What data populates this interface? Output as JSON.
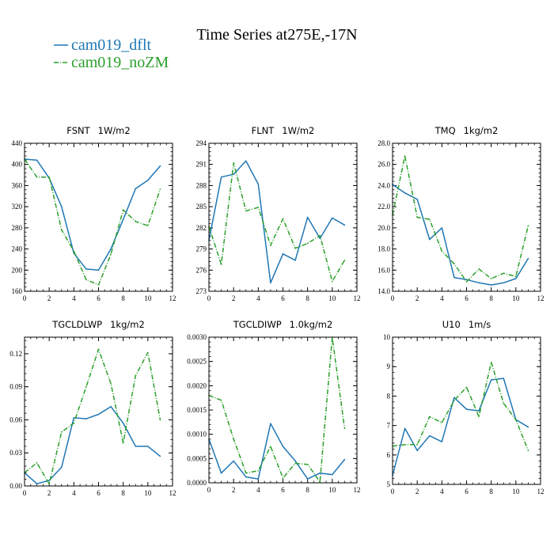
{
  "title": "Time Series at275E,-17N",
  "legend": [
    {
      "label": "cam019_dflt",
      "color": "#1f77b4"
    },
    {
      "label": "cam019_noZM",
      "color": "#2ca02c"
    }
  ],
  "chart_data": [
    {
      "type": "line",
      "title": "FSNT",
      "units": "1W/m2",
      "xlim": [
        0,
        12
      ],
      "xticks": [
        0,
        2,
        4,
        6,
        8,
        10,
        12
      ],
      "ylim": [
        160,
        440
      ],
      "yticks": [
        160,
        200,
        240,
        280,
        320,
        360,
        400,
        440
      ],
      "ytick_labels": [
        "160",
        "200",
        "240",
        "280",
        "320",
        "360",
        "400",
        "440"
      ],
      "x": [
        0,
        1,
        2,
        3,
        4,
        5,
        6,
        7,
        8,
        9,
        10,
        11
      ],
      "series": [
        {
          "name": "cam019_dflt",
          "values": [
            410,
            408,
            374,
            320,
            232,
            202,
            200,
            240,
            296,
            354,
            370,
            397
          ]
        },
        {
          "name": "cam019_noZM",
          "values": [
            410,
            376,
            376,
            276,
            236,
            182,
            172,
            230,
            314,
            292,
            284,
            353
          ]
        }
      ]
    },
    {
      "type": "line",
      "title": "FLNT",
      "units": "1W/m2",
      "xlim": [
        0,
        12
      ],
      "xticks": [
        0,
        2,
        4,
        6,
        8,
        10,
        12
      ],
      "ylim": [
        273,
        294
      ],
      "yticks": [
        273,
        276,
        279,
        282,
        285,
        288,
        291,
        294
      ],
      "ytick_labels": [
        "273",
        "276",
        "279",
        "282",
        "285",
        "288",
        "291",
        "294"
      ],
      "x": [
        0,
        1,
        2,
        3,
        4,
        5,
        6,
        7,
        8,
        9,
        10,
        11
      ],
      "series": [
        {
          "name": "cam019_dflt",
          "values": [
            280.2,
            289.2,
            289.6,
            291.5,
            288.2,
            274.2,
            278.3,
            277.4,
            283.5,
            280.5,
            283.4,
            282.4
          ]
        },
        {
          "name": "cam019_noZM",
          "values": [
            282.2,
            276.8,
            291.2,
            284.4,
            284.9,
            279.5,
            283.3,
            279.1,
            279.8,
            280.9,
            274.4,
            277.4
          ]
        }
      ]
    },
    {
      "type": "line",
      "title": "TMQ",
      "units": "1kg/m2",
      "xlim": [
        0,
        12
      ],
      "xticks": [
        0,
        2,
        4,
        6,
        8,
        10,
        12
      ],
      "ylim": [
        14,
        28
      ],
      "yticks": [
        14,
        16,
        18,
        20,
        22,
        24,
        26,
        28
      ],
      "ytick_labels": [
        "14.0",
        "16.0",
        "18.0",
        "20.0",
        "22.0",
        "24.0",
        "26.0",
        "28.0"
      ],
      "x": [
        0,
        1,
        2,
        3,
        4,
        5,
        6,
        7,
        8,
        9,
        10,
        11
      ],
      "series": [
        {
          "name": "cam019_dflt",
          "values": [
            24.1,
            23.3,
            22.7,
            18.9,
            20.0,
            15.3,
            15.1,
            14.8,
            14.6,
            14.8,
            15.2,
            17.1
          ]
        },
        {
          "name": "cam019_noZM",
          "values": [
            21.2,
            26.8,
            21.0,
            20.8,
            17.8,
            16.6,
            14.9,
            16.1,
            15.2,
            15.7,
            15.4,
            20.2
          ]
        }
      ]
    },
    {
      "type": "line",
      "title": "TGCLDLWP",
      "units": "1kg/m2",
      "xlim": [
        0,
        12
      ],
      "xticks": [
        0,
        2,
        4,
        6,
        8,
        10,
        12
      ],
      "ylim": [
        0,
        0.135
      ],
      "yticks": [
        0,
        0.03,
        0.06,
        0.09,
        0.12
      ],
      "ytick_labels": [
        "0.00",
        "0.03",
        "0.06",
        "0.09",
        "0.12"
      ],
      "x": [
        0,
        1,
        2,
        3,
        4,
        5,
        6,
        7,
        8,
        9,
        10,
        11
      ],
      "series": [
        {
          "name": "cam019_dflt",
          "values": [
            0.012,
            0.002,
            0.005,
            0.017,
            0.062,
            0.061,
            0.065,
            0.072,
            0.057,
            0.036,
            0.036,
            0.027
          ]
        },
        {
          "name": "cam019_noZM",
          "values": [
            0.012,
            0.021,
            0.002,
            0.049,
            0.057,
            0.09,
            0.124,
            0.093,
            0.039,
            0.1,
            0.121,
            0.06
          ]
        }
      ]
    },
    {
      "type": "line",
      "title": "TGCLDIWP",
      "units": "1.0kg/m2",
      "xlim": [
        0,
        12
      ],
      "xticks": [
        0,
        2,
        4,
        6,
        8,
        10,
        12
      ],
      "ylim": [
        0,
        0.003
      ],
      "yticks": [
        0,
        0.0005,
        0.001,
        0.0015,
        0.002,
        0.0025,
        0.003
      ],
      "ytick_labels": [
        "0.0000",
        "0.0005",
        "0.0010",
        "0.0015",
        "0.0020",
        "0.0025",
        "0.0030"
      ],
      "x": [
        0,
        1,
        2,
        3,
        4,
        5,
        6,
        7,
        8,
        9,
        10,
        11
      ],
      "series": [
        {
          "name": "cam019_dflt",
          "values": [
            0.0009,
            0.0002,
            0.00045,
            0.00012,
            8e-05,
            0.00122,
            0.00075,
            0.00045,
            8e-05,
            0.0002,
            0.00017,
            0.00048
          ]
        },
        {
          "name": "cam019_noZM",
          "values": [
            0.0018,
            0.0017,
            0.0009,
            0.0002,
            0.00025,
            0.00075,
            0.0001,
            0.0004,
            0.00038,
            2e-05,
            0.003,
            0.00112
          ]
        }
      ]
    },
    {
      "type": "line",
      "title": "U10",
      "units": "1m/s",
      "xlim": [
        0,
        12
      ],
      "xticks": [
        0,
        2,
        4,
        6,
        8,
        10,
        12
      ],
      "ylim": [
        5,
        10
      ],
      "yticks": [
        5,
        6,
        7,
        8,
        9,
        10
      ],
      "ytick_labels": [
        "5",
        "6",
        "7",
        "8",
        "9",
        "10"
      ],
      "x": [
        0,
        1,
        2,
        3,
        4,
        5,
        6,
        7,
        8,
        9,
        10,
        11
      ],
      "series": [
        {
          "name": "cam019_dflt",
          "values": [
            5.3,
            6.9,
            6.15,
            6.65,
            6.45,
            7.95,
            7.55,
            7.5,
            8.55,
            8.6,
            7.2,
            6.95
          ]
        },
        {
          "name": "cam019_noZM",
          "values": [
            6.3,
            6.35,
            6.35,
            7.3,
            7.1,
            7.85,
            8.3,
            7.3,
            9.15,
            7.75,
            7.2,
            6.15
          ]
        }
      ]
    }
  ]
}
